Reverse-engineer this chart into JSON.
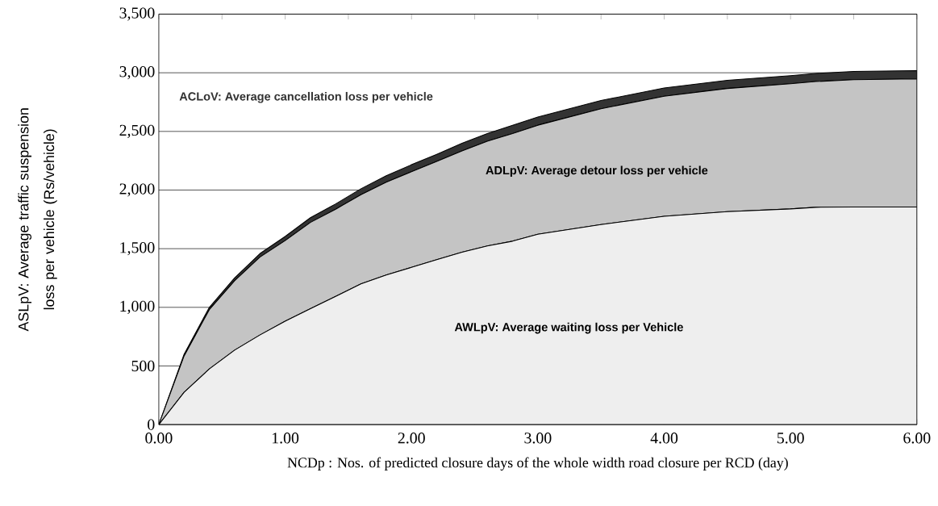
{
  "chart_data": {
    "type": "area",
    "stacked": true,
    "xlabel": "NCDp : Nos. of predicted closure days of the whole width road closure per RCD (day)",
    "ylabel": "ASLpV:  Average traffic suspension loss per vehicle (Rs/vehicle)",
    "x": [
      0,
      0.2,
      0.4,
      0.6,
      0.8,
      1.0,
      1.2,
      1.4,
      1.6,
      1.8,
      2.0,
      2.2,
      2.4,
      2.6,
      2.8,
      3.0,
      3.5,
      4.0,
      4.5,
      5.0,
      5.2,
      5.5,
      6.0
    ],
    "series": [
      {
        "name": "AWLpV:  Average waiting loss per Vehicle",
        "color": "#eeeeee",
        "values": [
          0,
          275,
          475,
          635,
          764,
          882,
          988,
          1094,
          1200,
          1275,
          1341,
          1407,
          1470,
          1524,
          1564,
          1623,
          1706,
          1776,
          1816,
          1839,
          1853,
          1855,
          1855
        ]
      },
      {
        "name": "ADLpV:  Average detour loss per vehicle",
        "color": "#c4c4c4",
        "values": [
          0,
          310,
          505,
          591,
          664,
          687,
          736,
          743,
          761,
          792,
          815,
          838,
          864,
          893,
          918,
          930,
          988,
          1024,
          1050,
          1067,
          1072,
          1086,
          1093
        ]
      },
      {
        "name": "ACLoV:  Average cancellation loss per vehicle",
        "color": "#333333",
        "values": [
          0,
          15,
          20,
          25,
          30,
          35,
          40,
          45,
          50,
          55,
          60,
          60,
          65,
          65,
          70,
          70,
          70,
          70,
          70,
          70,
          70,
          70,
          70
        ]
      }
    ],
    "xlim": [
      0,
      6
    ],
    "ylim": [
      0,
      3500
    ],
    "xticks": [
      {
        "value": 0,
        "label": "0.00"
      },
      {
        "value": 0.5,
        "label": null
      },
      {
        "value": 1,
        "label": "1.00"
      },
      {
        "value": 1.5,
        "label": null
      },
      {
        "value": 2,
        "label": "2.00"
      },
      {
        "value": 2.5,
        "label": null
      },
      {
        "value": 3,
        "label": "3.00"
      },
      {
        "value": 3.5,
        "label": null
      },
      {
        "value": 4,
        "label": "4.00"
      },
      {
        "value": 4.5,
        "label": null
      },
      {
        "value": 5,
        "label": "5.00"
      },
      {
        "value": 5.5,
        "label": null
      },
      {
        "value": 6,
        "label": "6.00"
      }
    ],
    "yticks": [
      0,
      {
        "value": 500,
        "label": "500"
      },
      {
        "value": 1000,
        "label": "1,000"
      },
      {
        "value": 1500,
        "label": "1,500"
      },
      {
        "value": 2000,
        "label": "2,000"
      },
      {
        "value": 2500,
        "label": "2,500"
      },
      {
        "value": 3000,
        "label": "3,000"
      },
      {
        "value": 3500,
        "label": "3,500"
      }
    ],
    "grid": "y"
  }
}
